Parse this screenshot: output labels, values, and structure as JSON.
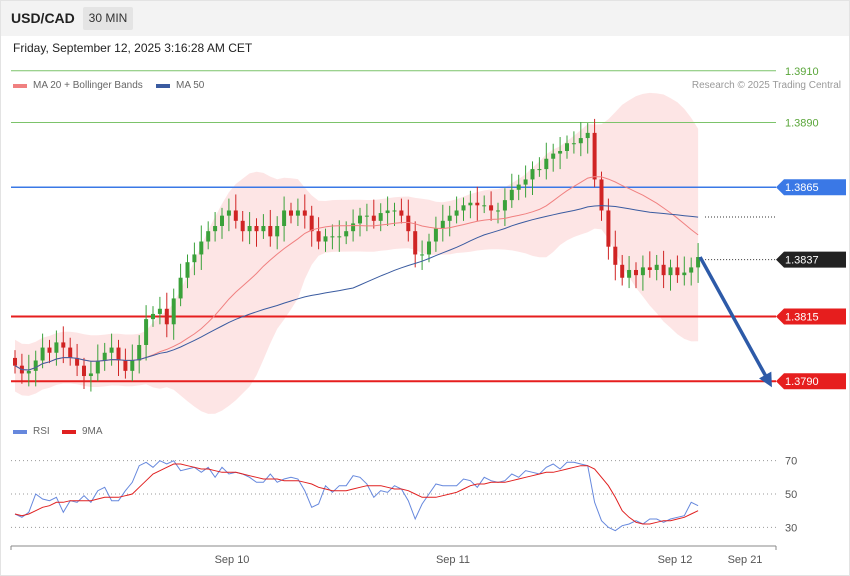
{
  "header": {
    "symbol": "USD/CAD",
    "timeframe": "30 MIN",
    "datetime": "Friday, September 12, 2025 3:16:28 AM CET"
  },
  "legend": {
    "ma20": {
      "label": "MA 20 + Bollinger Bands",
      "color": "#f08080"
    },
    "ma50": {
      "label": "MA 50",
      "color": "#3a5ba0"
    },
    "credit": "Research © 2025 Trading Central"
  },
  "rsi_legend": {
    "rsi": {
      "label": "RSI",
      "color": "#6688dd"
    },
    "ma9": {
      "label": "9MA",
      "color": "#e02020"
    }
  },
  "chart_data": {
    "type": "candlestick",
    "y_range": [
      1.3775,
      1.3925
    ],
    "levels": [
      {
        "label": "1.3910",
        "value": 1.391,
        "kind": "target",
        "color": "#7cc36a"
      },
      {
        "label": "1.3890",
        "value": 1.389,
        "kind": "target",
        "color": "#7cc36a"
      },
      {
        "label": "1.3865",
        "value": 1.3865,
        "kind": "pivot",
        "color": "#3a78e6"
      },
      {
        "label": "1.3837",
        "value": 1.3837,
        "kind": "current",
        "color": "#222222"
      },
      {
        "label": "1.3815",
        "value": 1.3815,
        "kind": "support",
        "color": "#e61e1e"
      },
      {
        "label": "1.3790",
        "value": 1.379,
        "kind": "support",
        "color": "#e61e1e"
      }
    ],
    "x_labels": [
      "Sep 10",
      "Sep 11",
      "Sep 12",
      "Sep 21"
    ],
    "close": [
      1.3796,
      1.3793,
      1.3794,
      1.3798,
      1.3803,
      1.3801,
      1.3805,
      1.3803,
      1.3799,
      1.3796,
      1.3792,
      1.3793,
      1.3798,
      1.3801,
      1.3803,
      1.3798,
      1.3794,
      1.3798,
      1.3804,
      1.3814,
      1.3816,
      1.3818,
      1.3812,
      1.3822,
      1.383,
      1.3836,
      1.3839,
      1.3844,
      1.3848,
      1.385,
      1.3854,
      1.3856,
      1.3852,
      1.3848,
      1.385,
      1.3848,
      1.385,
      1.3846,
      1.385,
      1.3856,
      1.3854,
      1.3856,
      1.3854,
      1.3848,
      1.3844,
      1.3846,
      1.3846,
      1.3846,
      1.3848,
      1.3851,
      1.3854,
      1.3854,
      1.3852,
      1.3855,
      1.3856,
      1.3856,
      1.3854,
      1.3848,
      1.3839,
      1.3839,
      1.3844,
      1.3849,
      1.3852,
      1.3854,
      1.3856,
      1.3858,
      1.3859,
      1.3858,
      1.3858,
      1.3856,
      1.3856,
      1.386,
      1.3864,
      1.3866,
      1.3868,
      1.3872,
      1.3872,
      1.3876,
      1.3878,
      1.3879,
      1.3882,
      1.3882,
      1.3884,
      1.3886,
      1.3868,
      1.3856,
      1.3842,
      1.3835,
      1.383,
      1.3833,
      1.3831,
      1.3834,
      1.3833,
      1.3835,
      1.3831,
      1.3834,
      1.3831,
      1.3832,
      1.3834,
      1.3838
    ],
    "rsi": {
      "y_range": [
        20,
        80
      ],
      "levels": [
        70,
        50,
        30
      ],
      "rsi_values": [
        38,
        36,
        39,
        50,
        47,
        46,
        48,
        39,
        46,
        45,
        49,
        45,
        52,
        54,
        46,
        46,
        52,
        57,
        67,
        69,
        66,
        70,
        68,
        70,
        64,
        65,
        66,
        63,
        66,
        60,
        66,
        62,
        63,
        62,
        60,
        57,
        57,
        62,
        57,
        59,
        60,
        59,
        52,
        42,
        44,
        55,
        51,
        55,
        55,
        61,
        60,
        56,
        48,
        52,
        51,
        55,
        53,
        46,
        35,
        44,
        50,
        56,
        55,
        55,
        55,
        59,
        58,
        54,
        60,
        58,
        57,
        58,
        62,
        60,
        64,
        63,
        62,
        66,
        68,
        65,
        69,
        69,
        68,
        67,
        45,
        34,
        30,
        28,
        31,
        32,
        34,
        32,
        35,
        35,
        33,
        35,
        36,
        37,
        45,
        43
      ],
      "ma9_values": [
        38,
        37,
        38,
        40,
        42,
        43,
        45,
        45,
        46,
        46,
        46,
        46,
        47,
        48,
        48,
        48,
        49,
        50,
        54,
        58,
        62,
        64,
        66,
        68,
        68,
        67,
        66,
        65,
        65,
        64,
        63,
        63,
        63,
        62,
        61,
        60,
        59,
        59,
        59,
        58,
        58,
        58,
        57,
        56,
        54,
        53,
        52,
        52,
        52,
        53,
        54,
        55,
        55,
        55,
        54,
        53,
        53,
        52,
        50,
        48,
        48,
        48,
        49,
        50,
        51,
        53,
        55,
        56,
        56,
        57,
        57,
        57,
        58,
        59,
        60,
        61,
        62,
        63,
        63,
        64,
        65,
        66,
        67,
        67,
        65,
        60,
        55,
        48,
        40,
        36,
        33,
        32,
        32,
        33,
        34,
        34,
        35,
        36,
        38,
        40
      ]
    }
  }
}
